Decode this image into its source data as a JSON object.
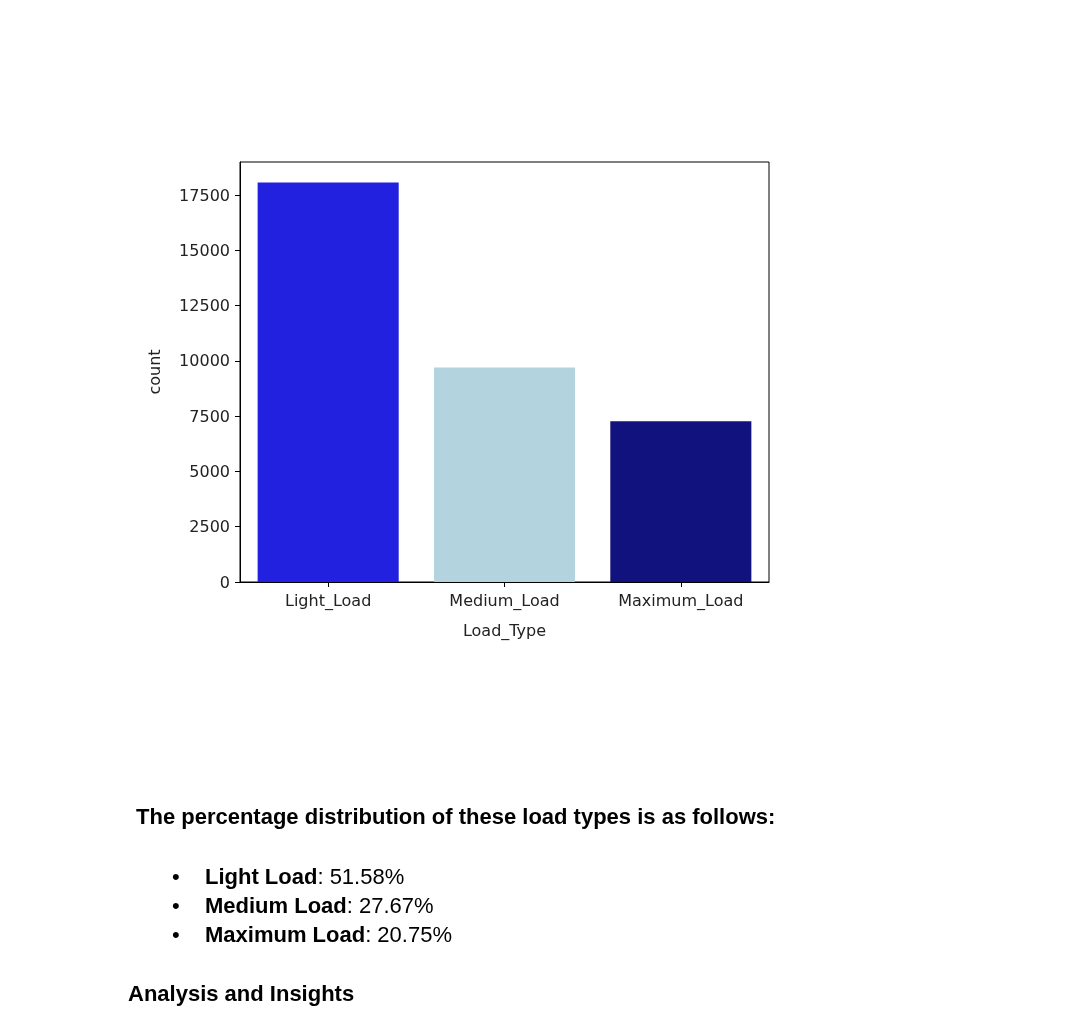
{
  "chart_data": {
    "type": "bar",
    "xlabel": "Load_Type",
    "ylabel": "count",
    "categories": [
      "Light_Load",
      "Medium_Load",
      "Maximum_Load"
    ],
    "values": [
      18070,
      9700,
      7270
    ],
    "colors": [
      "#2121df",
      "#b3d4df",
      "#12127e"
    ],
    "ylim": [
      0,
      19000
    ],
    "yticks": [
      0,
      2500,
      5000,
      7500,
      10000,
      12500,
      15000,
      17500
    ],
    "grid": false,
    "annotations": [
      "The percentage distribution of these load types is as follows:",
      "• Light Load: 51.58%",
      "• Medium Load: 27.67%",
      "• Maximum Load: 20.75%",
      "Analysis and Insights"
    ]
  }
}
